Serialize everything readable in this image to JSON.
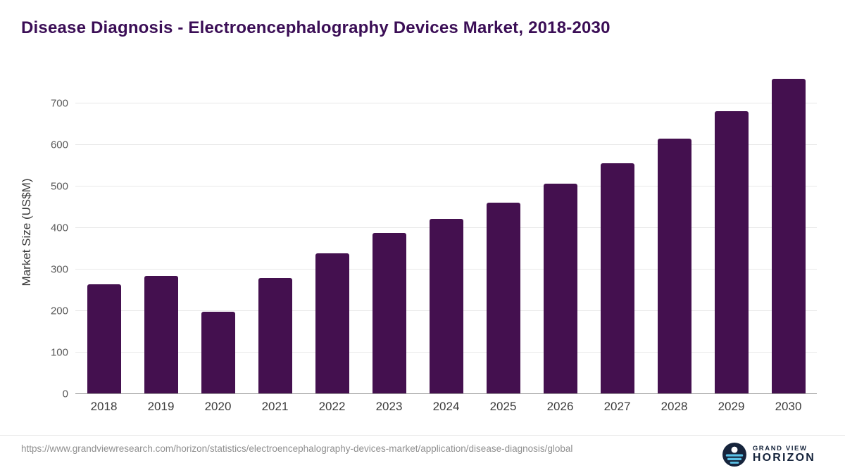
{
  "header": {
    "title": "Disease Diagnosis - Electroencephalography Devices Market, 2018-2030"
  },
  "chart_data": {
    "type": "bar",
    "title": "Disease Diagnosis - Electroencephalography Devices Market, 2018-2030",
    "categories": [
      "2018",
      "2019",
      "2020",
      "2021",
      "2022",
      "2023",
      "2024",
      "2025",
      "2026",
      "2027",
      "2028",
      "2029",
      "2030"
    ],
    "values": [
      265,
      285,
      198,
      280,
      340,
      388,
      422,
      462,
      507,
      557,
      616,
      682,
      760
    ],
    "xlabel": "",
    "ylabel": "Market Size (US$M)",
    "yticks": [
      0,
      100,
      200,
      300,
      400,
      500,
      600,
      700
    ],
    "ylim": [
      0,
      780
    ],
    "bar_color": "#44104F",
    "grid": true,
    "legend": false
  },
  "footer": {
    "source_url": "https://www.grandviewresearch.com/horizon/statistics/electroencephalography-devices-market/application/disease-diagnosis/global",
    "logo": {
      "line1": "GRAND VIEW",
      "line2": "HORIZON"
    }
  },
  "colors": {
    "title": "#3b0e56",
    "bar": "#44104F",
    "gridline": "#e8e8e8",
    "axis_line": "#9b9b9b",
    "tick_text": "#595959",
    "logo_navy": "#16243c",
    "logo_blue": "#5bc2e7"
  }
}
